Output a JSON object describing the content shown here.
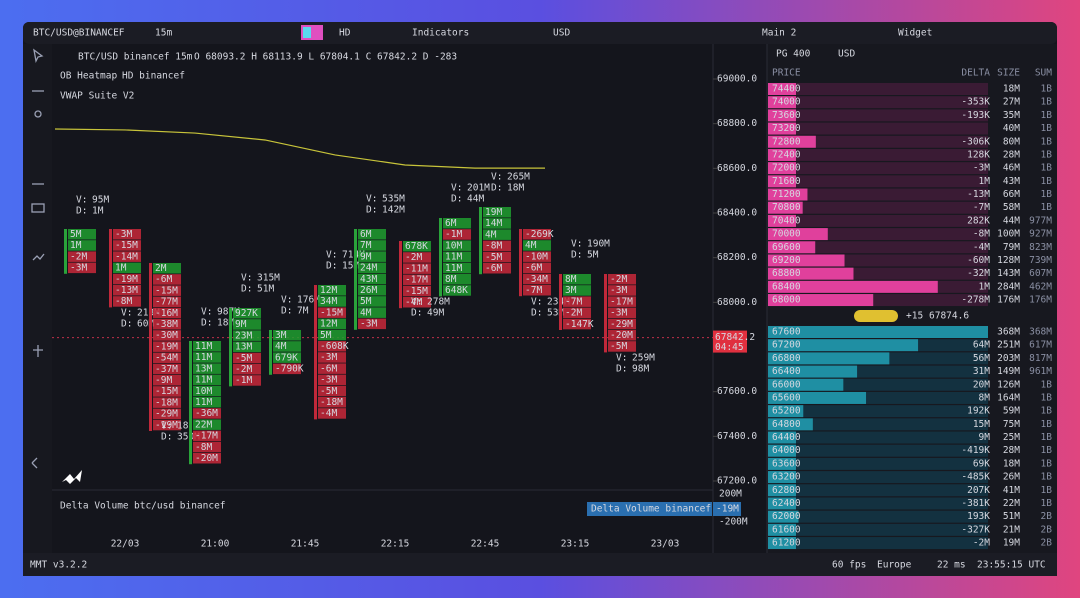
{
  "toolbar": {
    "symbol": "BTC/USD@BINANCEF",
    "interval": "15m",
    "hd": "HD",
    "indicators": "Indicators",
    "currency": "USD",
    "layout": "Main 2",
    "widget": "Widget"
  },
  "chart": {
    "legend": {
      "title": "BTC/USD binancef 15m",
      "ohlc": "O 68093.2 H 68113.9 L 67804.1 C 67842.2 D -283",
      "heatmap": "OB Heatmap",
      "heatmap_source": "HD binancef",
      "vwap": "VWAP Suite V2"
    },
    "price_ticks": [
      {
        "value": 69000,
        "label": "69000.0"
      },
      {
        "value": 68800,
        "label": "68800.0"
      },
      {
        "value": 68600,
        "label": "68600.0"
      },
      {
        "value": 68400,
        "label": "68400.0"
      },
      {
        "value": 68200,
        "label": "68200.0"
      },
      {
        "value": 68000,
        "label": "68000.0"
      },
      {
        "value": 67600,
        "label": "67600.0"
      },
      {
        "value": 67400,
        "label": "67400.0"
      },
      {
        "value": 67200,
        "label": "67200.0"
      }
    ],
    "last_price": 67842.2,
    "countdown": "04:45",
    "vwap_values": [
      68776,
      68772,
      68758,
      68727,
      68660,
      68615,
      68601,
      68601
    ],
    "volume_label": "V:",
    "delta_label": "D:",
    "clusters": [
      {
        "volume": "95M",
        "delta": "1M",
        "cells": [
          "5M",
          "1M",
          "-2M",
          "-3M"
        ]
      },
      {
        "volume": "213M",
        "delta": "60M",
        "cells": [
          "-3M",
          "-15M",
          "-14M",
          "1M",
          "-19M",
          "-13M",
          "-8M"
        ]
      },
      {
        "volume": "18",
        "delta": "350M",
        "cells": [
          "2M",
          "-6M",
          "-15M",
          "-77M",
          "-16M",
          "-38M",
          "-30M",
          "-19M",
          "-54M",
          "-37M",
          "-9M",
          "-15M",
          "-18M",
          "-29M",
          "-19M"
        ]
      },
      {
        "volume": "987M",
        "delta": "18M",
        "cells": [
          "11M",
          "11M",
          "13M",
          "11M",
          "10M",
          "11M",
          "-36M",
          "22M",
          "-17M",
          "-8M",
          "-20M"
        ]
      },
      {
        "volume": "315M",
        "delta": "51M",
        "cells": [
          "927K",
          "9M",
          "23M",
          "13M",
          "-5M",
          "-2M",
          "-1M"
        ]
      },
      {
        "volume": "176M",
        "delta": "7M",
        "cells": [
          "3M",
          "4M",
          "679K",
          "-790K"
        ]
      },
      {
        "volume": "714M",
        "delta": "15M",
        "cells": [
          "12M",
          "34M",
          "-15M",
          "12M",
          "5M",
          "-608K",
          "-3M",
          "-6M",
          "-3M",
          "-5M",
          "-18M",
          "-4M"
        ]
      },
      {
        "volume": "535M",
        "delta": "142M",
        "cells": [
          "6M",
          "7M",
          "9M",
          "24M",
          "43M",
          "26M",
          "5M",
          "4M",
          "-3M"
        ]
      },
      {
        "volume": "278M",
        "delta": "49M",
        "cells": [
          "678K",
          "-2M",
          "-11M",
          "-17M",
          "-15M",
          "-4M"
        ]
      },
      {
        "volume": "201M",
        "delta": "44M",
        "cells": [
          "6M",
          "-1M",
          "10M",
          "11M",
          "11M",
          "8M",
          "648K"
        ]
      },
      {
        "volume": "265M",
        "delta": "18M",
        "cells": [
          "19M",
          "14M",
          "4M",
          "-8M",
          "-5M",
          "-6M"
        ]
      },
      {
        "volume": "234M",
        "delta": "53M",
        "cells": [
          "-269K",
          "4M",
          "-10M",
          "-6M",
          "-34M",
          "-7M"
        ]
      },
      {
        "volume": "190M",
        "delta": "5M",
        "cells": [
          "8M",
          "3M",
          "-7M",
          "-2M",
          "-147K"
        ]
      },
      {
        "volume": "259M",
        "delta": "98M",
        "cells": [
          "-2M",
          "-3M",
          "-17M",
          "-3M",
          "-29M",
          "-20M",
          "-5M"
        ]
      }
    ],
    "time_ticks": [
      "22/03",
      "21:00",
      "21:45",
      "22:15",
      "22:45",
      "23:15",
      "23/03"
    ],
    "delta_volume": {
      "title": "Delta Volume",
      "source": "btc/usd binancef",
      "tag": "Delta Volume binancef",
      "tag_value": "-19M",
      "ticks": [
        "200M",
        "-200M"
      ]
    }
  },
  "orderbook": {
    "grouping": "PG 400",
    "currency": "USD",
    "columns": [
      "PRICE",
      "DELTA",
      "SIZE",
      "SUM"
    ],
    "asks": [
      {
        "price": 74400,
        "delta": null,
        "size": "18M",
        "sum": "1B"
      },
      {
        "price": 74000,
        "delta": "-353K",
        "size": "27M",
        "sum": "1B"
      },
      {
        "price": 73600,
        "delta": "-193K",
        "size": "35M",
        "sum": "1B"
      },
      {
        "price": 73200,
        "delta": null,
        "size": "40M",
        "sum": "1B"
      },
      {
        "price": 72800,
        "delta": "-306K",
        "size": "80M",
        "sum": "1B"
      },
      {
        "price": 72400,
        "delta": "128K",
        "size": "28M",
        "sum": "1B"
      },
      {
        "price": 72000,
        "delta": "-3M",
        "size": "46M",
        "sum": "1B"
      },
      {
        "price": 71600,
        "delta": "1M",
        "size": "43M",
        "sum": "1B"
      },
      {
        "price": 71200,
        "delta": "-13M",
        "size": "66M",
        "sum": "1B"
      },
      {
        "price": 70800,
        "delta": "-7M",
        "size": "58M",
        "sum": "1B"
      },
      {
        "price": 70400,
        "delta": "282K",
        "size": "44M",
        "sum": "977M"
      },
      {
        "price": 70000,
        "delta": "-8M",
        "size": "100M",
        "sum": "927M"
      },
      {
        "price": 69600,
        "delta": "-4M",
        "size": "79M",
        "sum": "823M"
      },
      {
        "price": 69200,
        "delta": "-60M",
        "size": "128M",
        "sum": "739M"
      },
      {
        "price": 68800,
        "delta": "-32M",
        "size": "143M",
        "sum": "607M"
      },
      {
        "price": 68400,
        "delta": "1M",
        "size": "284M",
        "sum": "462M"
      },
      {
        "price": 68000,
        "delta": "-278M",
        "size": "176M",
        "sum": "176M"
      }
    ],
    "mid": {
      "change": "+15",
      "price": "67874.6"
    },
    "bids": [
      {
        "price": 67600,
        "delta": null,
        "size": "368M",
        "sum": "368M"
      },
      {
        "price": 67200,
        "delta": "64M",
        "size": "251M",
        "sum": "617M"
      },
      {
        "price": 66800,
        "delta": "56M",
        "size": "203M",
        "sum": "817M"
      },
      {
        "price": 66400,
        "delta": "31M",
        "size": "149M",
        "sum": "961M"
      },
      {
        "price": 66000,
        "delta": "20M",
        "size": "126M",
        "sum": "1B"
      },
      {
        "price": 65600,
        "delta": "8M",
        "size": "164M",
        "sum": "1B"
      },
      {
        "price": 65200,
        "delta": "192K",
        "size": "59M",
        "sum": "1B"
      },
      {
        "price": 64800,
        "delta": "15M",
        "size": "75M",
        "sum": "1B"
      },
      {
        "price": 64400,
        "delta": "9M",
        "size": "25M",
        "sum": "1B"
      },
      {
        "price": 64000,
        "delta": "-419K",
        "size": "28M",
        "sum": "1B"
      },
      {
        "price": 63600,
        "delta": "69K",
        "size": "18M",
        "sum": "1B"
      },
      {
        "price": 63200,
        "delta": "-485K",
        "size": "26M",
        "sum": "1B"
      },
      {
        "price": 62800,
        "delta": "207K",
        "size": "41M",
        "sum": "1B"
      },
      {
        "price": 62400,
        "delta": "-381K",
        "size": "22M",
        "sum": "1B"
      },
      {
        "price": 62000,
        "delta": "193K",
        "size": "51M",
        "sum": "2B"
      },
      {
        "price": 61600,
        "delta": "-327K",
        "size": "21M",
        "sum": "2B"
      },
      {
        "price": 61200,
        "delta": "-2M",
        "size": "19M",
        "sum": "2B"
      }
    ]
  },
  "footer": {
    "version": "MMT v3.2.2",
    "fps": "60 fps",
    "region": "Europe",
    "latency": "22 ms",
    "clock": "23:55:15 UTC"
  }
}
